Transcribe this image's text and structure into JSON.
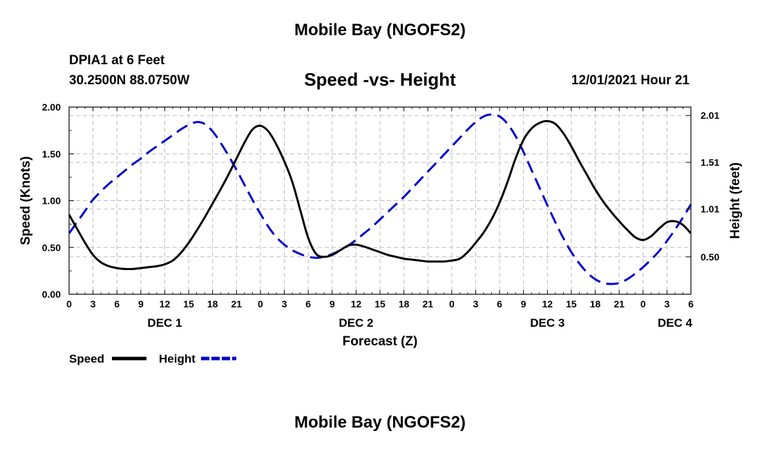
{
  "header": {
    "title": "Mobile Bay (NGOFS2)",
    "station": "DPIA1 at 6 Feet",
    "coords": "30.2500N  88.0750W",
    "chart_title": "Speed -vs- Height",
    "datetime": "12/01/2021 Hour 21",
    "footer_title": "Mobile Bay (NGOFS2)"
  },
  "chart_data": {
    "type": "line",
    "title": "Speed -vs- Height",
    "xlabel": "Forecast (Z)",
    "ylabel_left": "Speed (Knots)",
    "ylabel_right": "Height (feet)",
    "x_hours_range": [
      0,
      78
    ],
    "x_tick_labels": [
      "0",
      "3",
      "6",
      "9",
      "12",
      "15",
      "18",
      "21",
      "0",
      "3",
      "6",
      "9",
      "12",
      "15",
      "18",
      "21",
      "0",
      "3",
      "6",
      "9",
      "12",
      "15",
      "18",
      "21",
      "0",
      "3",
      "6"
    ],
    "day_labels": [
      {
        "label": "DEC 1",
        "hour": 12
      },
      {
        "label": "DEC 2",
        "hour": 36
      },
      {
        "label": "DEC 3",
        "hour": 60
      },
      {
        "label": "DEC 4",
        "hour": 76
      }
    ],
    "ylim_left": [
      0,
      2.0
    ],
    "yticks_left": [
      "0.00",
      "0.50",
      "1.00",
      "1.50",
      "2.00"
    ],
    "yticks_right": [
      {
        "label": "0.50",
        "value": 0.5
      },
      {
        "label": "1.01",
        "value": 1.01
      },
      {
        "label": "1.51",
        "value": 1.51
      },
      {
        "label": "2.01",
        "value": 2.01
      }
    ],
    "ylim_right": [
      0.1,
      2.1
    ],
    "grid": true,
    "legend": {
      "placement": "bottom-left",
      "entries": [
        {
          "name": "Speed",
          "color": "#000000",
          "style": "solid"
        },
        {
          "name": "Height",
          "color": "#0000cc",
          "style": "dashed"
        }
      ]
    },
    "series": [
      {
        "name": "Speed",
        "axis": "left",
        "color": "#000000",
        "x": [
          0,
          1,
          2,
          3,
          4,
          5,
          6,
          7,
          8,
          9,
          10,
          11,
          12,
          13,
          14,
          15,
          16,
          17,
          18,
          19,
          20,
          21,
          22,
          23,
          24,
          25,
          26,
          27,
          28,
          29,
          30,
          31,
          32,
          33,
          34,
          35,
          36,
          37,
          38,
          39,
          40,
          41,
          42,
          43,
          44,
          45,
          46,
          47,
          48,
          49,
          50,
          51,
          52,
          53,
          54,
          55,
          56,
          57,
          58,
          59,
          60,
          61,
          62,
          63,
          64,
          65,
          66,
          67,
          68,
          69,
          70,
          71,
          72,
          73,
          74,
          75,
          76,
          77,
          78
        ],
        "values": [
          0.85,
          0.7,
          0.55,
          0.42,
          0.34,
          0.3,
          0.28,
          0.27,
          0.27,
          0.28,
          0.29,
          0.3,
          0.32,
          0.36,
          0.44,
          0.55,
          0.68,
          0.82,
          0.97,
          1.12,
          1.28,
          1.45,
          1.62,
          1.76,
          1.8,
          1.74,
          1.6,
          1.42,
          1.2,
          0.9,
          0.6,
          0.43,
          0.4,
          0.42,
          0.47,
          0.52,
          0.53,
          0.51,
          0.48,
          0.45,
          0.42,
          0.4,
          0.38,
          0.37,
          0.36,
          0.35,
          0.35,
          0.35,
          0.36,
          0.38,
          0.45,
          0.55,
          0.66,
          0.8,
          0.98,
          1.2,
          1.45,
          1.65,
          1.77,
          1.83,
          1.85,
          1.82,
          1.72,
          1.58,
          1.42,
          1.27,
          1.12,
          0.99,
          0.88,
          0.78,
          0.69,
          0.61,
          0.58,
          0.62,
          0.7,
          0.77,
          0.78,
          0.74,
          0.65
        ]
      },
      {
        "name": "Height",
        "axis": "right",
        "color": "#0000cc",
        "x": [
          0,
          1,
          2,
          3,
          4,
          5,
          6,
          7,
          8,
          9,
          10,
          11,
          12,
          13,
          14,
          15,
          16,
          17,
          18,
          19,
          20,
          21,
          22,
          23,
          24,
          25,
          26,
          27,
          28,
          29,
          30,
          31,
          32,
          33,
          34,
          35,
          36,
          37,
          38,
          39,
          40,
          41,
          42,
          43,
          44,
          45,
          46,
          47,
          48,
          49,
          50,
          51,
          52,
          53,
          54,
          55,
          56,
          57,
          58,
          59,
          60,
          61,
          62,
          63,
          64,
          65,
          66,
          67,
          68,
          69,
          70,
          71,
          72,
          73,
          74,
          75,
          76,
          77,
          78
        ],
        "values": [
          0.75,
          0.87,
          0.99,
          1.11,
          1.2,
          1.28,
          1.35,
          1.42,
          1.49,
          1.55,
          1.62,
          1.68,
          1.74,
          1.8,
          1.86,
          1.91,
          1.94,
          1.92,
          1.84,
          1.72,
          1.58,
          1.43,
          1.27,
          1.11,
          0.96,
          0.82,
          0.71,
          0.63,
          0.57,
          0.53,
          0.5,
          0.49,
          0.5,
          0.53,
          0.57,
          0.62,
          0.68,
          0.75,
          0.82,
          0.9,
          0.98,
          1.06,
          1.14,
          1.23,
          1.32,
          1.41,
          1.5,
          1.59,
          1.68,
          1.77,
          1.86,
          1.94,
          2.0,
          2.02,
          2.0,
          1.92,
          1.79,
          1.62,
          1.43,
          1.24,
          1.05,
          0.87,
          0.7,
          0.55,
          0.43,
          0.33,
          0.26,
          0.22,
          0.21,
          0.22,
          0.26,
          0.32,
          0.39,
          0.47,
          0.56,
          0.67,
          0.79,
          0.92,
          1.06
        ]
      }
    ]
  }
}
